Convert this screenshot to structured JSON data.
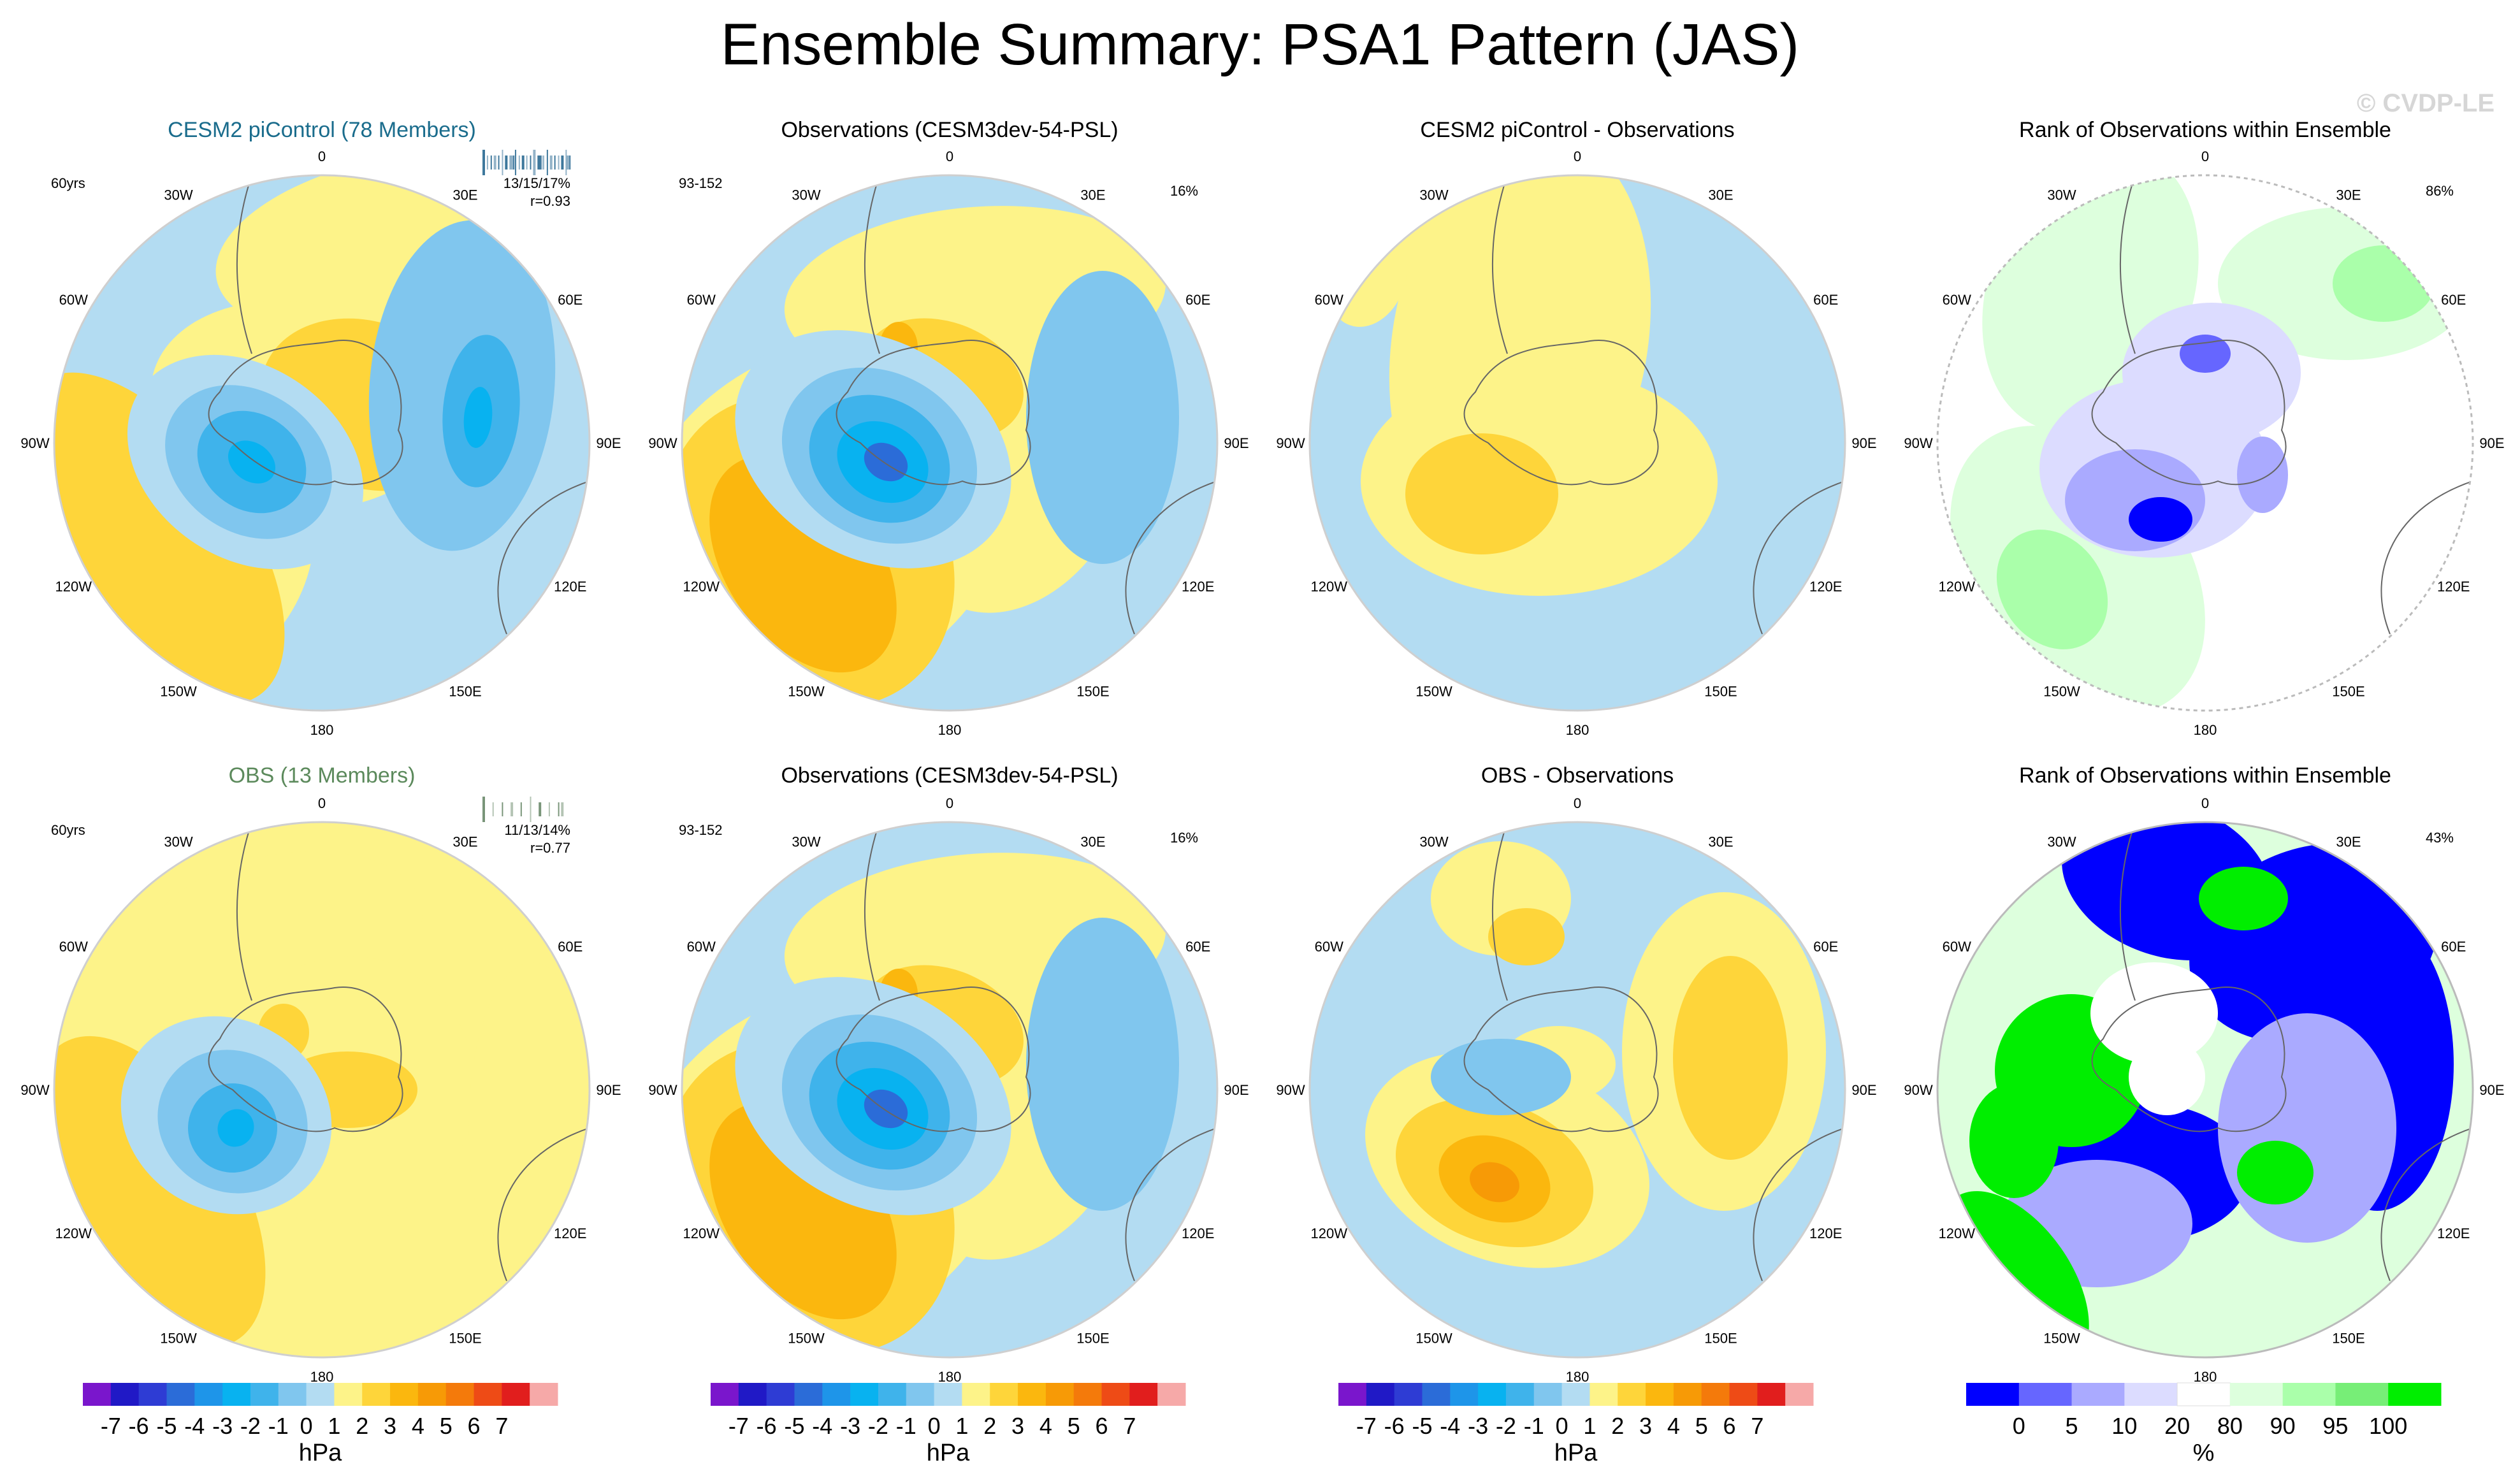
{
  "title": "Ensemble Summary: PSA1 Pattern (JAS)",
  "watermark": "© CVDP-LE",
  "colors": {
    "ocean": "#b3dcf2",
    "land_line": "#666666",
    "anom_pos": [
      "#fdf389",
      "#fed53a",
      "#fbb70e",
      "#f79a06",
      "#f47a0b",
      "#ee4b16",
      "#e11e1d",
      "#c81c24",
      "#f6a9a8"
    ],
    "anom_neg": [
      "#b3dcf2",
      "#80c6ee",
      "#3fb3eb",
      "#08b2f0",
      "#1e95e9",
      "#2b6cd8",
      "#2e3cd4",
      "#2019c6",
      "#7a16cc"
    ],
    "rank": [
      "#0000ff",
      "#6666ff",
      "#aaaaff",
      "#dcdcff",
      "#ffffff",
      "#ddffdd",
      "#aaffaa",
      "#77ee77",
      "#00ee00"
    ]
  },
  "longitude_labels": [
    "0",
    "30E",
    "60E",
    "90E",
    "120E",
    "150E",
    "180",
    "150W",
    "120W",
    "90W",
    "60W",
    "30W"
  ],
  "panels": [
    {
      "title": "CESM2 piControl (78 Members)",
      "title_color": "#1a6c8c",
      "left_label": "60yrs",
      "right_label": "13/15/17%",
      "right_label2": "r=0.93",
      "kind": "ens_cesm",
      "has_bars": true,
      "bar_color": "#2a6a92"
    },
    {
      "title": "Observations (CESM3dev-54-PSL)",
      "title_color": "#000000",
      "left_label": "93-152",
      "right_label": "16%",
      "right_label2": "",
      "kind": "obs",
      "has_bars": false,
      "bar_color": ""
    },
    {
      "title": "CESM2 piControl - Observations",
      "title_color": "#000000",
      "left_label": "",
      "right_label": "",
      "right_label2": "",
      "kind": "diff_cesm",
      "has_bars": false,
      "bar_color": ""
    },
    {
      "title": "Rank of Observations within Ensemble",
      "title_color": "#000000",
      "left_label": "",
      "right_label": "86%",
      "right_label2": "",
      "kind": "rank_cesm",
      "has_bars": false,
      "bar_color": ""
    },
    {
      "title": "OBS (13 Members)",
      "title_color": "#5c8a5c",
      "left_label": "60yrs",
      "right_label": "11/13/14%",
      "right_label2": "r=0.77",
      "kind": "ens_obs",
      "has_bars": true,
      "bar_color": "#6b8a6b"
    },
    {
      "title": "Observations (CESM3dev-54-PSL)",
      "title_color": "#000000",
      "left_label": "93-152",
      "right_label": "16%",
      "right_label2": "",
      "kind": "obs",
      "has_bars": false,
      "bar_color": ""
    },
    {
      "title": "OBS - Observations",
      "title_color": "#000000",
      "left_label": "",
      "right_label": "",
      "right_label2": "",
      "kind": "diff_obs",
      "has_bars": false,
      "bar_color": ""
    },
    {
      "title": "Rank of Observations within Ensemble",
      "title_color": "#000000",
      "left_label": "",
      "right_label": "43%",
      "right_label2": "",
      "kind": "rank_obs",
      "has_bars": false,
      "bar_color": ""
    }
  ],
  "chart_data": [
    {
      "type": "heatmap",
      "title": "CESM2 piControl (78 Members)",
      "projection": "south polar stereographic",
      "field": "sea level pressure anomaly (hPa)",
      "range": [
        -7,
        7
      ]
    },
    {
      "type": "heatmap",
      "title": "Observations (CESM3dev-54-PSL)",
      "projection": "south polar stereographic",
      "field": "sea level pressure anomaly (hPa)",
      "range": [
        -7,
        7
      ]
    },
    {
      "type": "heatmap",
      "title": "CESM2 piControl - Observations",
      "projection": "south polar stereographic",
      "field": "difference (hPa)",
      "range": [
        -7,
        7
      ]
    },
    {
      "type": "heatmap",
      "title": "Rank of Observations within Ensemble",
      "projection": "south polar stereographic",
      "field": "rank (%)",
      "range": [
        0,
        100
      ]
    },
    {
      "type": "heatmap",
      "title": "OBS (13 Members)",
      "projection": "south polar stereographic",
      "field": "sea level pressure anomaly (hPa)",
      "range": [
        -7,
        7
      ]
    },
    {
      "type": "heatmap",
      "title": "Observations (CESM3dev-54-PSL)",
      "projection": "south polar stereographic",
      "field": "sea level pressure anomaly (hPa)",
      "range": [
        -7,
        7
      ]
    },
    {
      "type": "heatmap",
      "title": "OBS - Observations",
      "projection": "south polar stereographic",
      "field": "difference (hPa)",
      "range": [
        -7,
        7
      ]
    },
    {
      "type": "heatmap",
      "title": "Rank of Observations within Ensemble",
      "projection": "south polar stereographic",
      "field": "rank (%)",
      "range": [
        0,
        100
      ]
    }
  ],
  "colorbars": [
    {
      "unit": "hPa",
      "labels": [
        "-7",
        "-6",
        "-5",
        "-4",
        "-3",
        "-2",
        "-1",
        "0",
        "1",
        "2",
        "3",
        "4",
        "5",
        "6",
        "7"
      ],
      "colors": [
        "#7a16cc",
        "#2019c6",
        "#2e3cd4",
        "#2b6cd8",
        "#1e95e9",
        "#08b2f0",
        "#3fb3eb",
        "#80c6ee",
        "#b3dcf2",
        "#fdf389",
        "#fed53a",
        "#fbb70e",
        "#f79a06",
        "#f47a0b",
        "#ee4b16",
        "#e11e1d",
        "#f6a9a8"
      ]
    },
    {
      "unit": "hPa",
      "labels": [
        "-7",
        "-6",
        "-5",
        "-4",
        "-3",
        "-2",
        "-1",
        "0",
        "1",
        "2",
        "3",
        "4",
        "5",
        "6",
        "7"
      ],
      "colors": [
        "#7a16cc",
        "#2019c6",
        "#2e3cd4",
        "#2b6cd8",
        "#1e95e9",
        "#08b2f0",
        "#3fb3eb",
        "#80c6ee",
        "#b3dcf2",
        "#fdf389",
        "#fed53a",
        "#fbb70e",
        "#f79a06",
        "#f47a0b",
        "#ee4b16",
        "#e11e1d",
        "#f6a9a8"
      ]
    },
    {
      "unit": "hPa",
      "labels": [
        "-7",
        "-6",
        "-5",
        "-4",
        "-3",
        "-2",
        "-1",
        "0",
        "1",
        "2",
        "3",
        "4",
        "5",
        "6",
        "7"
      ],
      "colors": [
        "#7a16cc",
        "#2019c6",
        "#2e3cd4",
        "#2b6cd8",
        "#1e95e9",
        "#08b2f0",
        "#3fb3eb",
        "#80c6ee",
        "#b3dcf2",
        "#fdf389",
        "#fed53a",
        "#fbb70e",
        "#f79a06",
        "#f47a0b",
        "#ee4b16",
        "#e11e1d",
        "#f6a9a8"
      ]
    },
    {
      "unit": "%",
      "labels": [
        "0",
        "5",
        "10",
        "20",
        "80",
        "90",
        "95",
        "100"
      ],
      "colors": [
        "#0000ff",
        "#6666ff",
        "#aaaaff",
        "#dcdcff",
        "#ffffff",
        "#ddffdd",
        "#aaffaa",
        "#77ee77",
        "#00ee00"
      ]
    }
  ]
}
